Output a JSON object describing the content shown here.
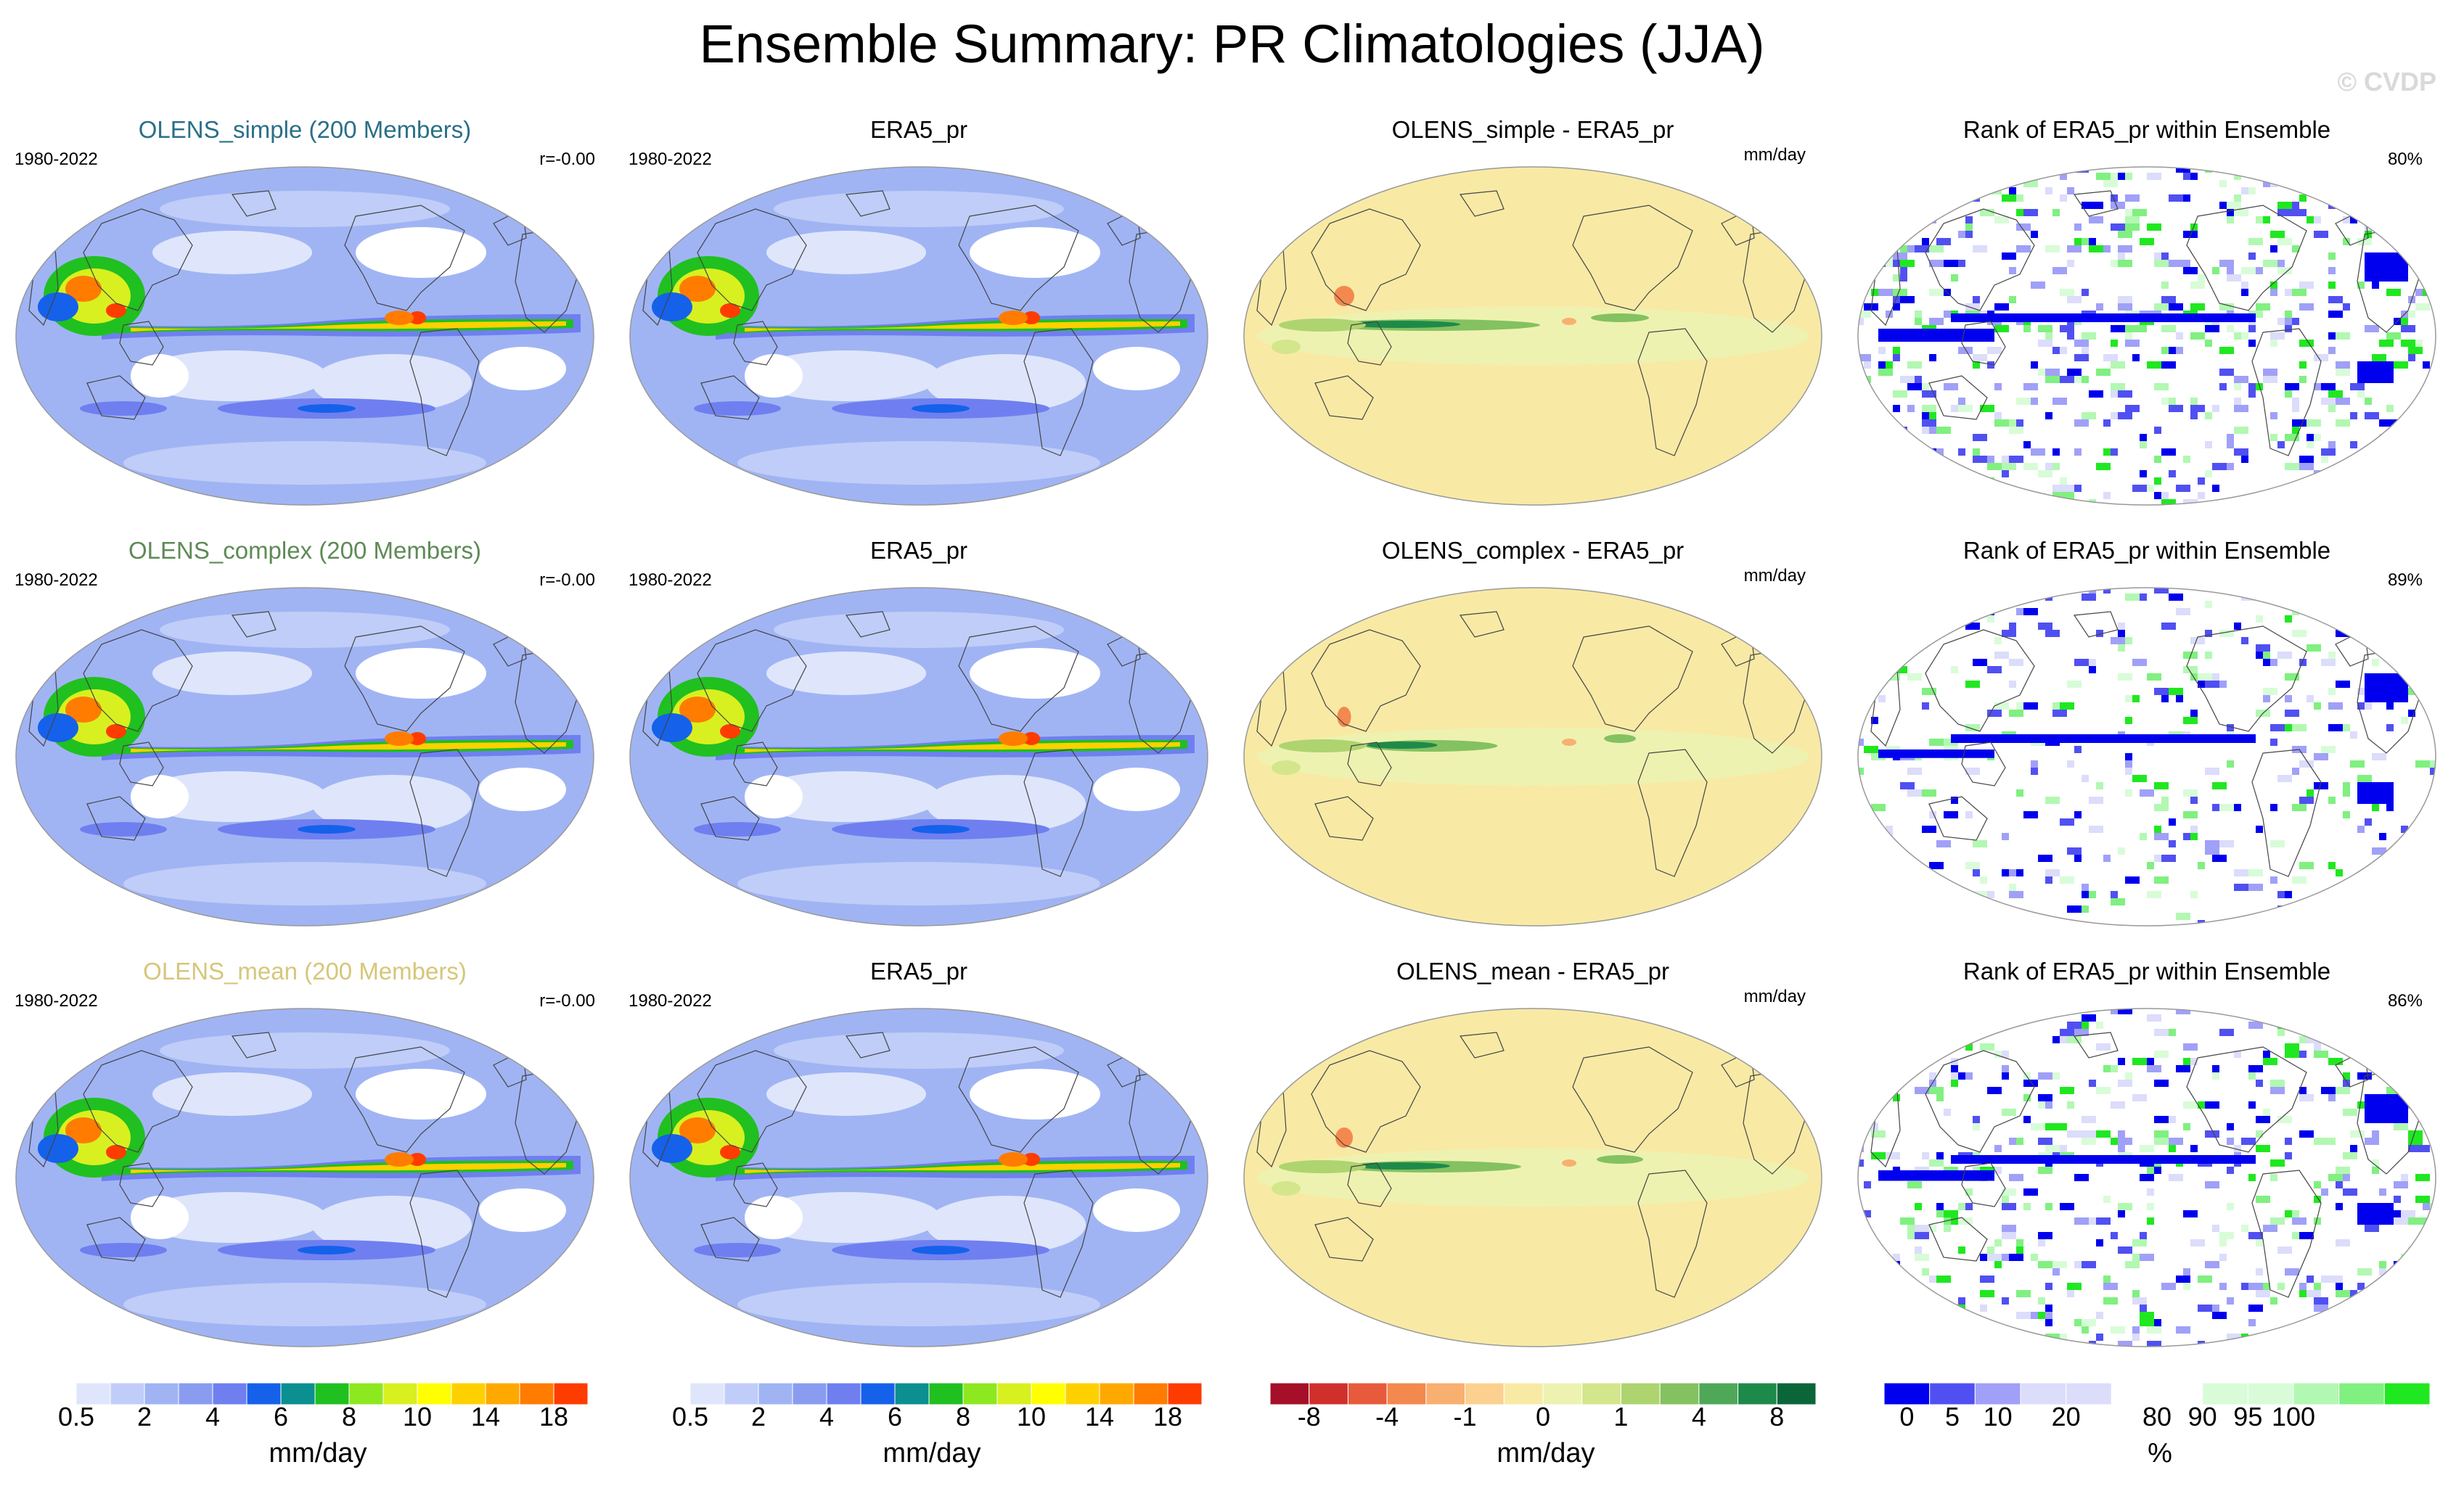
{
  "title": "Ensemble Summary: PR Climatologies (JJA)",
  "watermark": "© CVDP",
  "period": "1980-2022",
  "units_label": "mm/day",
  "rows": [
    {
      "ensemble": {
        "label": "OLENS_simple (200 Members)",
        "color": "#2a6f88",
        "r": "r=-0.00"
      },
      "obs": {
        "label": "ERA5_pr"
      },
      "diff": {
        "label": "OLENS_simple - ERA5_pr",
        "units": "mm/day"
      },
      "rank": {
        "label": "Rank of ERA5_pr within Ensemble",
        "pct": "80%"
      }
    },
    {
      "ensemble": {
        "label": "OLENS_complex (200 Members)",
        "color": "#5e8a56",
        "r": "r=-0.00"
      },
      "obs": {
        "label": "ERA5_pr"
      },
      "diff": {
        "label": "OLENS_complex - ERA5_pr",
        "units": "mm/day"
      },
      "rank": {
        "label": "Rank of ERA5_pr within Ensemble",
        "pct": "89%"
      }
    },
    {
      "ensemble": {
        "label": "OLENS_mean (200 Members)",
        "color": "#d6c67a",
        "r": "r=-0.00"
      },
      "obs": {
        "label": "ERA5_pr"
      },
      "diff": {
        "label": "OLENS_mean - ERA5_pr",
        "units": "mm/day"
      },
      "rank": {
        "label": "Rank of ERA5_pr within Ensemble",
        "pct": "86%"
      }
    }
  ],
  "colorbars": [
    {
      "label": "mm/day",
      "ticks": [
        "0.5",
        "2",
        "4",
        "6",
        "8",
        "10",
        "14",
        "18"
      ],
      "tick_after_box": [
        1,
        3,
        5,
        7,
        9,
        11,
        13,
        15
      ],
      "colors": [
        "#ffffff",
        "#dfe6fb",
        "#bfcdf8",
        "#a0b4f4",
        "#8a9cf0",
        "#6f7ff0",
        "#1561ea",
        "#0b8f90",
        "#20c020",
        "#8ee820",
        "#d8f020",
        "#ffff00",
        "#ffd000",
        "#ffa800",
        "#ff7c00",
        "#ff3c00"
      ]
    },
    {
      "label": "mm/day",
      "ticks": [
        "0.5",
        "2",
        "4",
        "6",
        "8",
        "10",
        "14",
        "18"
      ],
      "tick_after_box": [
        1,
        3,
        5,
        7,
        9,
        11,
        13,
        15
      ],
      "colors": [
        "#ffffff",
        "#dfe6fb",
        "#bfcdf8",
        "#a0b4f4",
        "#8a9cf0",
        "#6f7ff0",
        "#1561ea",
        "#0b8f90",
        "#20c020",
        "#8ee820",
        "#d8f020",
        "#ffff00",
        "#ffd000",
        "#ffa800",
        "#ff7c00",
        "#ff3c00"
      ]
    },
    {
      "label": "mm/day",
      "ticks": [
        "-8",
        "-4",
        "-1",
        "0",
        "1",
        "4",
        "8"
      ],
      "tick_after_box": [
        1,
        3,
        5,
        7,
        9,
        11,
        13
      ],
      "colors": [
        "#a50f28",
        "#d0302c",
        "#e85a3c",
        "#f3894e",
        "#f8b070",
        "#fcd08e",
        "#f8eaa5",
        "#eef2b0",
        "#d3e68c",
        "#aed470",
        "#84c160",
        "#4fa858",
        "#1e8a4a",
        "#0a6638"
      ]
    },
    {
      "label": "%",
      "ticks": [
        "0",
        "5",
        "10",
        "20",
        "80",
        "90",
        "95",
        "100"
      ],
      "tick_after_box": [
        0.5,
        1.5,
        2.5,
        4,
        6,
        7,
        8,
        9
      ],
      "colors": [
        "#0000ee",
        "#5050f2",
        "#a0a0f8",
        "#dcdcfb",
        "#dcdcfb",
        "#ffffff",
        "#ffffff",
        "#d8fcd8",
        "#d8fcd8",
        "#b2f8b2",
        "#80f080",
        "#20e820"
      ]
    }
  ],
  "chart_data": [
    {
      "type": "heatmap",
      "description_title": "Ensemble Summary: PR Climatologies (JJA)",
      "projection": "Robinson (global, Pacific-centred)",
      "panels": [
        {
          "row": 1,
          "col": 1,
          "title": "OLENS_simple (200 Members)",
          "field": "precipitation",
          "units": "mm/day",
          "levels": [
            0.5,
            1,
            2,
            3,
            4,
            5,
            6,
            7,
            8,
            9,
            10,
            12,
            14,
            16,
            18
          ],
          "pattern_correlation": -0.0
        },
        {
          "row": 1,
          "col": 2,
          "title": "ERA5_pr",
          "field": "precipitation",
          "units": "mm/day",
          "levels": [
            0.5,
            1,
            2,
            3,
            4,
            5,
            6,
            7,
            8,
            9,
            10,
            12,
            14,
            16,
            18
          ]
        },
        {
          "row": 1,
          "col": 3,
          "title": "OLENS_simple - ERA5_pr",
          "field": "difference",
          "units": "mm/day",
          "levels": [
            -8,
            -6,
            -4,
            -2,
            -1,
            -0.5,
            0,
            0.5,
            1,
            2,
            4,
            6,
            8
          ]
        },
        {
          "row": 1,
          "col": 4,
          "title": "Rank of ERA5_pr within Ensemble",
          "field": "rank",
          "units": "%",
          "levels": [
            0,
            5,
            10,
            20,
            80,
            90,
            95,
            100
          ],
          "fraction_within_10_90": 80
        },
        {
          "row": 2,
          "col": 1,
          "title": "OLENS_complex (200 Members)",
          "field": "precipitation",
          "units": "mm/day",
          "pattern_correlation": -0.0
        },
        {
          "row": 2,
          "col": 2,
          "title": "ERA5_pr",
          "field": "precipitation",
          "units": "mm/day"
        },
        {
          "row": 2,
          "col": 3,
          "title": "OLENS_complex - ERA5_pr",
          "field": "difference",
          "units": "mm/day"
        },
        {
          "row": 2,
          "col": 4,
          "title": "Rank of ERA5_pr within Ensemble",
          "field": "rank",
          "units": "%",
          "fraction_within_10_90": 89
        },
        {
          "row": 3,
          "col": 1,
          "title": "OLENS_mean (200 Members)",
          "field": "precipitation",
          "units": "mm/day",
          "pattern_correlation": -0.0
        },
        {
          "row": 3,
          "col": 2,
          "title": "ERA5_pr",
          "field": "precipitation",
          "units": "mm/day"
        },
        {
          "row": 3,
          "col": 3,
          "title": "OLENS_mean - ERA5_pr",
          "field": "difference",
          "units": "mm/day"
        },
        {
          "row": 3,
          "col": 4,
          "title": "Rank of ERA5_pr within Ensemble",
          "field": "rank",
          "units": "%",
          "fraction_within_10_90": 86
        }
      ]
    }
  ]
}
